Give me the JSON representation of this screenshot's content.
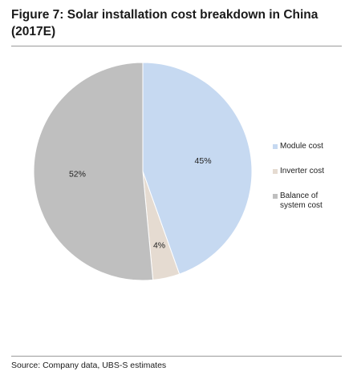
{
  "title_line1": "Figure 7: Solar installation cost breakdown in China",
  "title_line2": "(2017E)",
  "source": "Source: Company data, UBS-S estimates",
  "chart_data": {
    "type": "pie",
    "title": "Figure 7: Solar installation cost breakdown in China (2017E)",
    "labels": [
      "Module cost",
      "Inverter cost",
      "Balance of system cost"
    ],
    "values": [
      45,
      4,
      52
    ],
    "value_labels": [
      "45%",
      "4%",
      "52%"
    ],
    "colors": [
      "#c6d9f1",
      "#e5dbd1",
      "#bfbfbf"
    ],
    "legend_position": "right",
    "start_angle": "top",
    "direction": "clockwise"
  }
}
